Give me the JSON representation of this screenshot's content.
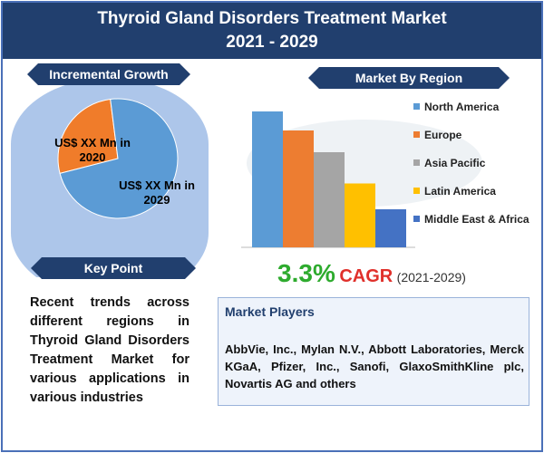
{
  "title": {
    "line1": "Thyroid Gland Disorders Treatment Market",
    "line2": "2021 - 2029"
  },
  "incremental_growth": {
    "heading": "Incremental Growth",
    "label_2020": "US$ XX Mn in 2020",
    "label_2029": "US$ XX Mn in 2029"
  },
  "key_point": {
    "heading": "Key Point",
    "text": "Recent trends across different regions in Thyroid Gland Disorders Treatment Market for various applications in various industries"
  },
  "market_by_region": {
    "heading": "Market By Region"
  },
  "cagr": {
    "value": "3.3%",
    "label": "CAGR",
    "period": "(2021-2029)"
  },
  "market_players": {
    "heading": "Market Players",
    "text": "AbbVie, Inc., Mylan N.V., Abbott Laboratories, Merck KGaA, Pfizer, Inc., Sanofi, GlaxoSmithKline plc, Novartis AG and others"
  },
  "chart_data": [
    {
      "type": "pie",
      "title": "Incremental Growth",
      "labels": [
        "US$ XX Mn in 2020",
        "US$ XX Mn in 2029"
      ],
      "values": [
        27,
        73
      ],
      "colors": [
        "#f07c2a",
        "#5b9bd5"
      ]
    },
    {
      "type": "bar",
      "title": "Market By Region",
      "categories": [
        "North America",
        "Europe",
        "Asia Pacific",
        "Latin America",
        "Middle East & Africa"
      ],
      "values": [
        100,
        86,
        70,
        47,
        28
      ],
      "colors": [
        "#5b9bd5",
        "#ed7d31",
        "#a5a5a5",
        "#ffc000",
        "#4472c4"
      ],
      "legend": "right",
      "grid": false
    }
  ]
}
